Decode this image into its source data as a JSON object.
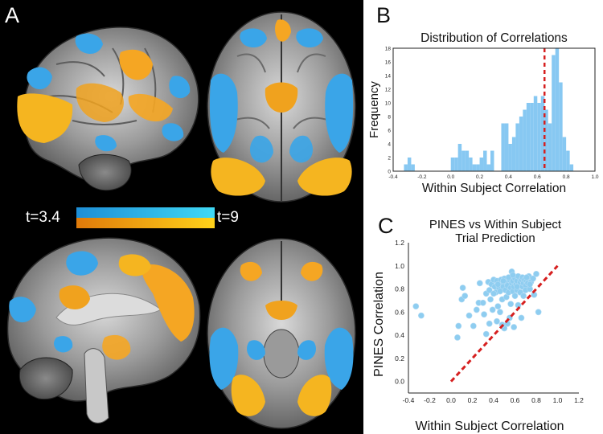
{
  "panels": {
    "a": "A",
    "b": "B",
    "c": "C"
  },
  "legend": {
    "low": "t=3.4",
    "high": "t=9",
    "neg_color": "#1e8ed6",
    "neg_color_hi": "#3fd9f5",
    "pos_color": "#e07a0a",
    "pos_color_hi": "#ffd21a"
  },
  "colors": {
    "blob_blue": "#3aa5e8",
    "blob_orange": "#f5a623",
    "hist_bar": "#87c8f2",
    "scatter_point": "#8ecdf0",
    "ref_line": "#d62020"
  },
  "chart_data": [
    {
      "type": "bar",
      "title": "Distribution of Correlations",
      "xlabel": "Within Subject Correlation",
      "ylabel": "Frequency",
      "xlim": [
        -0.4,
        1.0
      ],
      "ylim": [
        0,
        18
      ],
      "xticks": [
        "-0.4",
        "-0.2",
        "0.0",
        "0.2",
        "0.4",
        "0.6",
        "0.8",
        "1.0"
      ],
      "yticks": [
        "0",
        "2",
        "4",
        "6",
        "8",
        "10",
        "12",
        "14",
        "16",
        "18"
      ],
      "bin_width": 0.025,
      "bin_starts": [
        -0.325,
        -0.3,
        -0.275,
        0.0,
        0.025,
        0.05,
        0.075,
        0.1,
        0.125,
        0.15,
        0.175,
        0.2,
        0.225,
        0.25,
        0.275,
        0.35,
        0.375,
        0.4,
        0.425,
        0.45,
        0.475,
        0.5,
        0.525,
        0.55,
        0.575,
        0.6,
        0.625,
        0.65,
        0.675,
        0.7,
        0.725,
        0.75,
        0.775,
        0.8,
        0.825
      ],
      "values": [
        1,
        2,
        1,
        2,
        2,
        4,
        3,
        3,
        2,
        1,
        1,
        2,
        3,
        1,
        3,
        7,
        7,
        4,
        5,
        7,
        8,
        9,
        10,
        10,
        11,
        10,
        11,
        9,
        7,
        17,
        18,
        13,
        5,
        3,
        1
      ],
      "reference_line_x": 0.65
    },
    {
      "type": "scatter",
      "title": "PINES vs Within Subject Trial Prediction",
      "title_lines": [
        "PINES vs Within Subject",
        "Trial Prediction"
      ],
      "xlabel": "Within Subject Correlation",
      "ylabel": "PINES Correlation",
      "xlim": [
        -0.4,
        1.2
      ],
      "ylim": [
        -0.1,
        1.2
      ],
      "xticks": [
        "-0.4",
        "-0.2",
        "0.0",
        "0.2",
        "0.4",
        "0.6",
        "0.8",
        "1.0",
        "1.2"
      ],
      "yticks": [
        "0.0",
        "0.2",
        "0.4",
        "0.6",
        "0.8",
        "1.0",
        "1.2"
      ],
      "reference_line": {
        "from": [
          0.0,
          0.0
        ],
        "to": [
          1.0,
          1.0
        ]
      },
      "points": [
        [
          -0.33,
          0.65
        ],
        [
          -0.28,
          0.57
        ],
        [
          0.06,
          0.38
        ],
        [
          0.07,
          0.48
        ],
        [
          0.1,
          0.71
        ],
        [
          0.11,
          0.81
        ],
        [
          0.13,
          0.74
        ],
        [
          0.17,
          0.57
        ],
        [
          0.21,
          0.48
        ],
        [
          0.24,
          0.62
        ],
        [
          0.26,
          0.68
        ],
        [
          0.27,
          0.85
        ],
        [
          0.3,
          0.68
        ],
        [
          0.31,
          0.58
        ],
        [
          0.33,
          0.41
        ],
        [
          0.33,
          0.76
        ],
        [
          0.35,
          0.86
        ],
        [
          0.36,
          0.79
        ],
        [
          0.37,
          0.71
        ],
        [
          0.38,
          0.84
        ],
        [
          0.39,
          0.62
        ],
        [
          0.4,
          0.88
        ],
        [
          0.41,
          0.82
        ],
        [
          0.42,
          0.77
        ],
        [
          0.43,
          0.52
        ],
        [
          0.43,
          0.87
        ],
        [
          0.44,
          0.65
        ],
        [
          0.45,
          0.81
        ],
        [
          0.46,
          0.78
        ],
        [
          0.47,
          0.85
        ],
        [
          0.47,
          0.88
        ],
        [
          0.48,
          0.71
        ],
        [
          0.49,
          0.82
        ],
        [
          0.5,
          0.89
        ],
        [
          0.5,
          0.46
        ],
        [
          0.51,
          0.79
        ],
        [
          0.52,
          0.86
        ],
        [
          0.52,
          0.73
        ],
        [
          0.53,
          0.83
        ],
        [
          0.54,
          0.77
        ],
        [
          0.55,
          0.88
        ],
        [
          0.55,
          0.55
        ],
        [
          0.56,
          0.81
        ],
        [
          0.57,
          0.85
        ],
        [
          0.57,
          0.95
        ],
        [
          0.58,
          0.78
        ],
        [
          0.58,
          0.87
        ],
        [
          0.59,
          0.82
        ],
        [
          0.6,
          0.74
        ],
        [
          0.6,
          0.89
        ],
        [
          0.61,
          0.84
        ],
        [
          0.62,
          0.79
        ],
        [
          0.62,
          0.87
        ],
        [
          0.63,
          0.91
        ],
        [
          0.63,
          0.66
        ],
        [
          0.64,
          0.83
        ],
        [
          0.65,
          0.86
        ],
        [
          0.65,
          0.77
        ],
        [
          0.66,
          0.88
        ],
        [
          0.67,
          0.82
        ],
        [
          0.67,
          0.9
        ],
        [
          0.68,
          0.85
        ],
        [
          0.68,
          0.74
        ],
        [
          0.69,
          0.88
        ],
        [
          0.7,
          0.83
        ],
        [
          0.7,
          0.79
        ],
        [
          0.71,
          0.87
        ],
        [
          0.72,
          0.85
        ],
        [
          0.73,
          0.91
        ],
        [
          0.74,
          0.8
        ],
        [
          0.75,
          0.86
        ],
        [
          0.77,
          0.89
        ],
        [
          0.78,
          0.75
        ],
        [
          0.8,
          0.93
        ],
        [
          0.82,
          0.6
        ],
        [
          0.36,
          0.5
        ],
        [
          0.46,
          0.6
        ],
        [
          0.53,
          0.5
        ],
        [
          0.59,
          0.47
        ],
        [
          0.66,
          0.55
        ],
        [
          0.4,
          0.76
        ],
        [
          0.44,
          0.84
        ],
        [
          0.49,
          0.87
        ],
        [
          0.54,
          0.9
        ],
        [
          0.58,
          0.92
        ],
        [
          0.62,
          0.82
        ],
        [
          0.71,
          0.9
        ],
        [
          0.74,
          0.84
        ],
        [
          0.48,
          0.49
        ],
        [
          0.56,
          0.67
        ]
      ]
    }
  ]
}
